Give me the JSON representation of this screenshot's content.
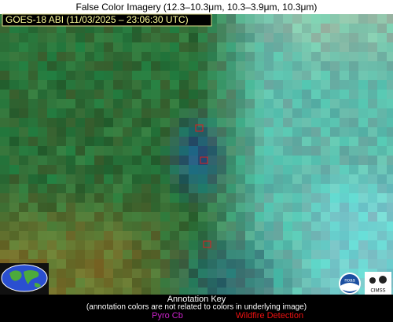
{
  "header": {
    "title": "False Color Imagery (12.3–10.3μm, 10.3–3.9μm, 10.3μm)"
  },
  "image": {
    "label": "GOES-18 ABI (11/03/2025 – 23:06:30 UTC)"
  },
  "logos": {
    "noaa": "noaa",
    "cimss": "CIMSS"
  },
  "annotation_key": {
    "title": "Annotation Key",
    "note": "(annotation colors are not related to colors in underlying image)",
    "items": [
      "Pyro Cb",
      "Wildfire Detection"
    ]
  }
}
